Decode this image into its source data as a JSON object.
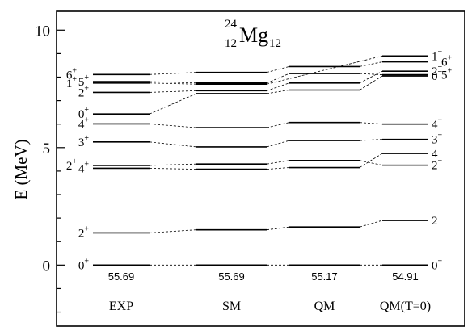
{
  "chart_data": {
    "type": "level-scheme",
    "title": "²⁴Mg₁₂",
    "nucleus": {
      "mass_number": "24",
      "proton_number": "12",
      "symbol": "Mg",
      "neutron_number": "12"
    },
    "ylabel": "E (MeV)",
    "ylim": [
      -2.6,
      10.8
    ],
    "yticks": [
      0,
      5,
      10
    ],
    "columns": [
      {
        "name": "EXP",
        "binding_energy": "55.69",
        "levels": [
          {
            "j": "0",
            "parity": "+",
            "energy": 0.0
          },
          {
            "j": "2",
            "parity": "+",
            "energy": 1.37
          },
          {
            "j": "4",
            "parity": "+",
            "energy": 4.12
          },
          {
            "j": "2",
            "parity": "+",
            "energy": 4.24
          },
          {
            "j": "3",
            "parity": "+",
            "energy": 5.24
          },
          {
            "j": "4",
            "parity": "+",
            "energy": 6.01
          },
          {
            "j": "0",
            "parity": "+",
            "energy": 6.43
          },
          {
            "j": "2",
            "parity": "+",
            "energy": 7.35
          },
          {
            "j": "1",
            "parity": "+",
            "energy": 7.75
          },
          {
            "j": "5",
            "parity": "+",
            "energy": 7.81
          },
          {
            "j": "6",
            "parity": "+",
            "energy": 8.11
          }
        ]
      },
      {
        "name": "SM",
        "binding_energy": "55.69",
        "levels": [
          {
            "j": "0",
            "parity": "+",
            "energy": 0.0
          },
          {
            "j": "2",
            "parity": "+",
            "energy": 1.5
          },
          {
            "j": "4",
            "parity": "+",
            "energy": 4.08
          },
          {
            "j": "2",
            "parity": "+",
            "energy": 4.3
          },
          {
            "j": "3",
            "parity": "+",
            "energy": 5.03
          },
          {
            "j": "4",
            "parity": "+",
            "energy": 5.85
          },
          {
            "j": "0",
            "parity": "+",
            "energy": 7.3
          },
          {
            "j": "2",
            "parity": "+",
            "energy": 7.42
          },
          {
            "j": "1",
            "parity": "+",
            "energy": 7.7
          },
          {
            "j": "5",
            "parity": "+",
            "energy": 7.75
          },
          {
            "j": "6",
            "parity": "+",
            "energy": 8.2
          }
        ]
      },
      {
        "name": "QM",
        "binding_energy": "55.17",
        "levels": [
          {
            "j": "0",
            "parity": "+",
            "energy": 0.0
          },
          {
            "j": "2",
            "parity": "+",
            "energy": 1.62
          },
          {
            "j": "4",
            "parity": "+",
            "energy": 4.15
          },
          {
            "j": "2",
            "parity": "+",
            "energy": 4.45
          },
          {
            "j": "3",
            "parity": "+",
            "energy": 5.3
          },
          {
            "j": "4",
            "parity": "+",
            "energy": 6.07
          },
          {
            "j": "0",
            "parity": "+",
            "energy": 7.45
          },
          {
            "j": "2",
            "parity": "+",
            "energy": 7.75
          },
          {
            "j": "5",
            "parity": "+",
            "energy": 8.15
          },
          {
            "j": "6",
            "parity": "+",
            "energy": 8.45
          }
        ]
      },
      {
        "name": "QM(T=0)",
        "binding_energy": "54.91",
        "levels": [
          {
            "j": "0",
            "parity": "+",
            "energy": 0.0
          },
          {
            "j": "2",
            "parity": "+",
            "energy": 1.9
          },
          {
            "j": "2",
            "parity": "+",
            "energy": 4.25
          },
          {
            "j": "4",
            "parity": "+",
            "energy": 4.75
          },
          {
            "j": "3",
            "parity": "+",
            "energy": 5.35
          },
          {
            "j": "4",
            "parity": "+",
            "energy": 6.0
          },
          {
            "j": "0",
            "parity": "+",
            "energy": 8.05
          },
          {
            "j": "5",
            "parity": "+",
            "energy": 8.1
          },
          {
            "j": "2",
            "parity": "+",
            "energy": 8.25
          },
          {
            "j": "6",
            "parity": "+",
            "energy": 8.65
          },
          {
            "j": "1",
            "parity": "+",
            "energy": 8.9
          }
        ]
      }
    ],
    "connections": [
      {
        "from": [
          0,
          0
        ],
        "to": [
          1,
          0
        ]
      },
      {
        "from": [
          1,
          0
        ],
        "to": [
          2,
          0
        ]
      },
      {
        "from": [
          2,
          0
        ],
        "to": [
          3,
          0
        ]
      },
      {
        "from": [
          0,
          1
        ],
        "to": [
          1,
          1
        ]
      },
      {
        "from": [
          1,
          1
        ],
        "to": [
          2,
          1
        ]
      },
      {
        "from": [
          2,
          1
        ],
        "to": [
          3,
          1
        ]
      },
      {
        "from": [
          0,
          2
        ],
        "to": [
          1,
          2
        ]
      },
      {
        "from": [
          1,
          2
        ],
        "to": [
          2,
          2
        ]
      },
      {
        "from": [
          2,
          2
        ],
        "to": [
          3,
          3
        ]
      },
      {
        "from": [
          0,
          3
        ],
        "to": [
          1,
          3
        ]
      },
      {
        "from": [
          1,
          3
        ],
        "to": [
          2,
          3
        ]
      },
      {
        "from": [
          2,
          3
        ],
        "to": [
          3,
          2
        ]
      },
      {
        "from": [
          0,
          4
        ],
        "to": [
          1,
          4
        ]
      },
      {
        "from": [
          1,
          4
        ],
        "to": [
          2,
          4
        ]
      },
      {
        "from": [
          2,
          4
        ],
        "to": [
          3,
          4
        ]
      },
      {
        "from": [
          0,
          5
        ],
        "to": [
          1,
          5
        ]
      },
      {
        "from": [
          1,
          5
        ],
        "to": [
          2,
          5
        ]
      },
      {
        "from": [
          2,
          5
        ],
        "to": [
          3,
          5
        ]
      },
      {
        "from": [
          0,
          6
        ],
        "to": [
          1,
          6
        ]
      },
      {
        "from": [
          1,
          6
        ],
        "to": [
          2,
          6
        ]
      },
      {
        "from": [
          2,
          6
        ],
        "to": [
          3,
          6
        ]
      },
      {
        "from": [
          0,
          7
        ],
        "to": [
          1,
          7
        ]
      },
      {
        "from": [
          1,
          7
        ],
        "to": [
          2,
          7
        ]
      },
      {
        "from": [
          2,
          7
        ],
        "to": [
          3,
          8
        ]
      },
      {
        "from": [
          0,
          8
        ],
        "to": [
          1,
          8
        ]
      },
      {
        "from": [
          1,
          8
        ],
        "to": [
          3,
          10
        ]
      },
      {
        "from": [
          0,
          9
        ],
        "to": [
          1,
          9
        ]
      },
      {
        "from": [
          1,
          9
        ],
        "to": [
          2,
          8
        ]
      },
      {
        "from": [
          2,
          8
        ],
        "to": [
          3,
          7
        ]
      },
      {
        "from": [
          0,
          10
        ],
        "to": [
          1,
          10
        ]
      },
      {
        "from": [
          1,
          10
        ],
        "to": [
          2,
          9
        ]
      },
      {
        "from": [
          2,
          9
        ],
        "to": [
          3,
          9
        ]
      }
    ]
  }
}
